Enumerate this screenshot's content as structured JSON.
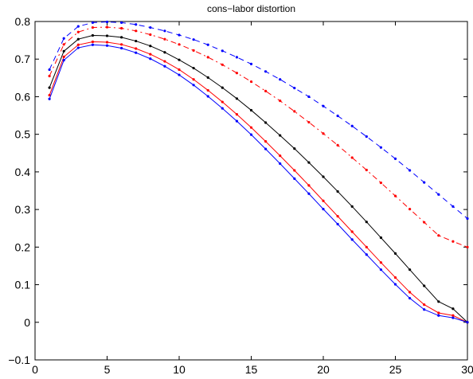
{
  "chart_data": {
    "type": "line",
    "title": "cons−labor distortion",
    "xlabel": "",
    "ylabel": "",
    "xlim": [
      0,
      30
    ],
    "ylim": [
      -0.1,
      0.8
    ],
    "xticks": [
      0,
      5,
      10,
      15,
      20,
      25,
      30
    ],
    "xtick_labels": [
      "0",
      "5",
      "10",
      "15",
      "20",
      "25",
      "30"
    ],
    "yticks": [
      -0.1,
      0,
      0.1,
      0.2,
      0.3,
      0.4,
      0.5,
      0.6,
      0.7,
      0.8
    ],
    "ytick_labels": [
      "−0.1",
      "0",
      "0.1",
      "0.2",
      "0.3",
      "0.4",
      "0.5",
      "0.6",
      "0.7",
      "0.8"
    ],
    "grid": false,
    "box": true,
    "x": [
      1,
      2,
      3,
      4,
      5,
      6,
      7,
      8,
      9,
      10,
      11,
      12,
      13,
      14,
      15,
      16,
      17,
      18,
      19,
      20,
      21,
      22,
      23,
      24,
      25,
      26,
      27,
      28,
      29,
      30
    ],
    "series": [
      {
        "color": "#0000ff",
        "linestyle": "dashed",
        "values": [
          0.672,
          0.755,
          0.787,
          0.797,
          0.799,
          0.797,
          0.792,
          0.784,
          0.775,
          0.764,
          0.752,
          0.738,
          0.722,
          0.705,
          0.687,
          0.667,
          0.646,
          0.623,
          0.6,
          0.575,
          0.549,
          0.522,
          0.494,
          0.465,
          0.435,
          0.404,
          0.372,
          0.34,
          0.308,
          0.276
        ]
      },
      {
        "color": "#ff0000",
        "linestyle": "dashdot",
        "values": [
          0.655,
          0.739,
          0.772,
          0.784,
          0.785,
          0.782,
          0.775,
          0.765,
          0.753,
          0.739,
          0.723,
          0.705,
          0.685,
          0.663,
          0.64,
          0.615,
          0.589,
          0.561,
          0.532,
          0.502,
          0.471,
          0.438,
          0.405,
          0.371,
          0.336,
          0.301,
          0.266,
          0.231,
          0.215,
          0.2
        ]
      },
      {
        "color": "#000000",
        "linestyle": "solid",
        "values": [
          0.624,
          0.721,
          0.753,
          0.763,
          0.762,
          0.758,
          0.748,
          0.735,
          0.718,
          0.698,
          0.676,
          0.651,
          0.624,
          0.595,
          0.564,
          0.531,
          0.497,
          0.462,
          0.425,
          0.387,
          0.348,
          0.308,
          0.267,
          0.225,
          0.183,
          0.14,
          0.097,
          0.055,
          0.036,
          0.0
        ]
      },
      {
        "color": "#ff0000",
        "linestyle": "solid",
        "values": [
          0.604,
          0.706,
          0.738,
          0.746,
          0.745,
          0.739,
          0.728,
          0.713,
          0.694,
          0.672,
          0.646,
          0.617,
          0.586,
          0.553,
          0.518,
          0.481,
          0.443,
          0.404,
          0.364,
          0.323,
          0.282,
          0.241,
          0.2,
          0.159,
          0.119,
          0.08,
          0.047,
          0.025,
          0.018,
          0.0
        ]
      },
      {
        "color": "#0000ff",
        "linestyle": "solid",
        "values": [
          0.594,
          0.697,
          0.73,
          0.738,
          0.736,
          0.729,
          0.717,
          0.701,
          0.681,
          0.658,
          0.631,
          0.601,
          0.569,
          0.535,
          0.499,
          0.461,
          0.422,
          0.382,
          0.342,
          0.301,
          0.261,
          0.22,
          0.18,
          0.14,
          0.101,
          0.064,
          0.034,
          0.018,
          0.012,
          0.0
        ]
      }
    ]
  }
}
